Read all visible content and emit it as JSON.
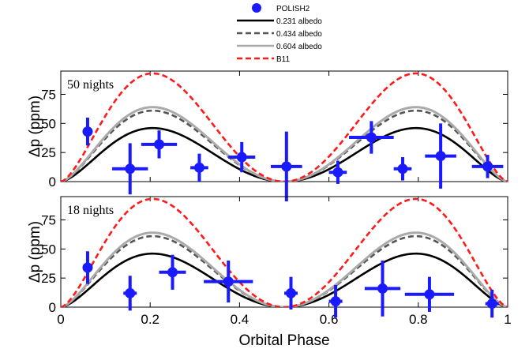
{
  "chart_data": [
    {
      "type": "line",
      "annotation": "50 nights",
      "ylabel": "Δp (ppm)",
      "xlabel": "",
      "xlim": [
        0,
        1
      ],
      "ylim": [
        0,
        95
      ],
      "yticks": [
        "0",
        "25",
        "50",
        "75"
      ],
      "grid": false,
      "legend": {
        "placement": "top-center",
        "entries": [
          {
            "label": "POLISH2",
            "color": "#1a1aff",
            "style": "marker"
          },
          {
            "label": "0.231 albedo",
            "color": "#000000",
            "style": "solid"
          },
          {
            "label": "0.434 albedo",
            "color": "#555555",
            "style": "dashed"
          },
          {
            "label": "0.604 albedo",
            "color": "#aaaaaa",
            "style": "solid"
          },
          {
            "label": "B11",
            "color": "#ff1a1a",
            "style": "dashed"
          }
        ]
      },
      "series": [
        {
          "name": "0.231 albedo",
          "peak": 46,
          "color": "#000000"
        },
        {
          "name": "0.434 albedo",
          "peak": 61,
          "color": "#555555"
        },
        {
          "name": "0.604 albedo",
          "peak": 64,
          "color": "#aaaaaa"
        },
        {
          "name": "B11",
          "peak": 93,
          "color": "#ff1a1a"
        }
      ],
      "points": [
        {
          "x": 0.06,
          "y": 43,
          "xerr": 0.01,
          "yerr": 12
        },
        {
          "x": 0.155,
          "y": 11,
          "xerr": 0.04,
          "yerr": 22
        },
        {
          "x": 0.22,
          "y": 32,
          "xerr": 0.04,
          "yerr": 12
        },
        {
          "x": 0.31,
          "y": 12,
          "xerr": 0.02,
          "yerr": 12
        },
        {
          "x": 0.405,
          "y": 21,
          "xerr": 0.03,
          "yerr": 13
        },
        {
          "x": 0.505,
          "y": 13,
          "xerr": 0.035,
          "yerr": 30
        },
        {
          "x": 0.62,
          "y": 8,
          "xerr": 0.02,
          "yerr": 10
        },
        {
          "x": 0.695,
          "y": 38,
          "xerr": 0.05,
          "yerr": 14
        },
        {
          "x": 0.765,
          "y": 11,
          "xerr": 0.02,
          "yerr": 10
        },
        {
          "x": 0.85,
          "y": 22,
          "xerr": 0.035,
          "yerr": 28
        },
        {
          "x": 0.955,
          "y": 13,
          "xerr": 0.035,
          "yerr": 10
        }
      ]
    },
    {
      "type": "line",
      "annotation": "18 nights",
      "ylabel": "Δp (ppm)",
      "xlabel": "Orbital Phase",
      "xlim": [
        0,
        1
      ],
      "ylim": [
        0,
        95
      ],
      "xticks": [
        "0",
        "0.2",
        "0.4",
        "0.6",
        "0.8",
        "1"
      ],
      "yticks": [
        "0",
        "25",
        "50",
        "75"
      ],
      "grid": false,
      "series": [
        {
          "name": "0.231 albedo",
          "peak": 46,
          "color": "#000000"
        },
        {
          "name": "0.434 albedo",
          "peak": 61,
          "color": "#555555"
        },
        {
          "name": "0.604 albedo",
          "peak": 64,
          "color": "#aaaaaa"
        },
        {
          "name": "B11",
          "peak": 93,
          "color": "#ff1a1a"
        }
      ],
      "points": [
        {
          "x": 0.06,
          "y": 34,
          "xerr": 0.01,
          "yerr": 14
        },
        {
          "x": 0.155,
          "y": 12,
          "xerr": 0.015,
          "yerr": 15
        },
        {
          "x": 0.25,
          "y": 30,
          "xerr": 0.03,
          "yerr": 15
        },
        {
          "x": 0.375,
          "y": 22,
          "xerr": 0.055,
          "yerr": 18
        },
        {
          "x": 0.515,
          "y": 12,
          "xerr": 0.015,
          "yerr": 14
        },
        {
          "x": 0.615,
          "y": 5,
          "xerr": 0.015,
          "yerr": 14
        },
        {
          "x": 0.72,
          "y": 16,
          "xerr": 0.04,
          "yerr": 24
        },
        {
          "x": 0.825,
          "y": 11,
          "xerr": 0.055,
          "yerr": 15
        },
        {
          "x": 0.965,
          "y": 3,
          "xerr": 0.015,
          "yerr": 12
        }
      ]
    }
  ]
}
